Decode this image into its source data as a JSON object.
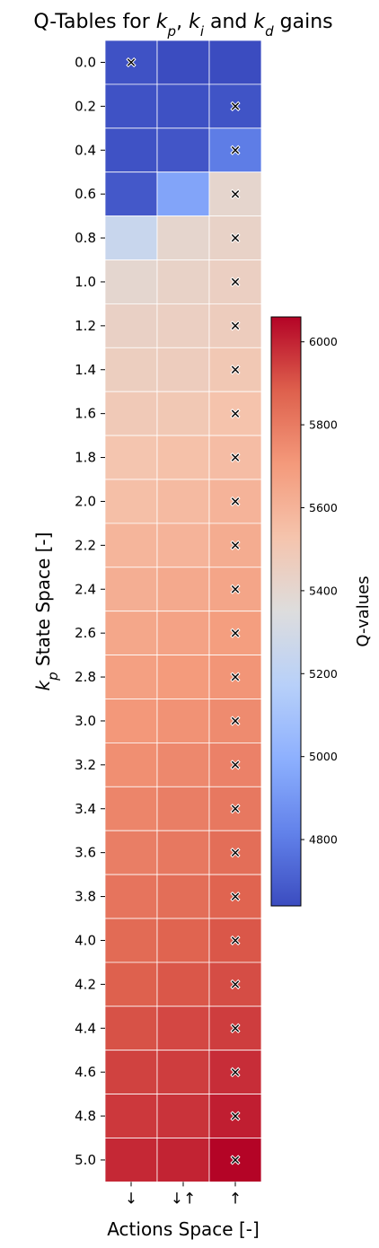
{
  "chart_data": {
    "type": "heatmap",
    "title": "Q-Tables for $k_p$, $k_i$ and $k_d$ gains",
    "title_parts": [
      "Q-Tables for ",
      "k",
      "p",
      ", ",
      "k",
      "i",
      " and ",
      "k",
      "d",
      " gains"
    ],
    "xlabel": "Actions Space [-]",
    "ylabel": "$k_p$ State Space [-]",
    "ylabel_parts": [
      "k",
      "p",
      " State Space [-]"
    ],
    "x_categories": [
      "↓",
      "↓↑",
      "↑"
    ],
    "y_categories": [
      "0.0",
      "0.2",
      "0.4",
      "0.6",
      "0.8",
      "1.0",
      "1.2",
      "1.4",
      "1.6",
      "1.8",
      "2.0",
      "2.2",
      "2.4",
      "2.6",
      "2.8",
      "3.0",
      "3.2",
      "3.4",
      "3.6",
      "3.8",
      "4.0",
      "4.2",
      "4.4",
      "4.6",
      "4.8",
      "5.0"
    ],
    "values": [
      [
        4660,
        4640,
        4640
      ],
      [
        4660,
        4655,
        4665
      ],
      [
        4660,
        4670,
        4800
      ],
      [
        4680,
        4950,
        5410
      ],
      [
        5250,
        5410,
        5430
      ],
      [
        5400,
        5430,
        5450
      ],
      [
        5440,
        5450,
        5470
      ],
      [
        5460,
        5470,
        5500
      ],
      [
        5490,
        5500,
        5530
      ],
      [
        5520,
        5540,
        5560
      ],
      [
        5550,
        5570,
        5600
      ],
      [
        5590,
        5600,
        5630
      ],
      [
        5620,
        5640,
        5660
      ],
      [
        5650,
        5670,
        5690
      ],
      [
        5680,
        5700,
        5720
      ],
      [
        5710,
        5730,
        5750
      ],
      [
        5740,
        5760,
        5780
      ],
      [
        5770,
        5790,
        5810
      ],
      [
        5790,
        5810,
        5840
      ],
      [
        5820,
        5840,
        5870
      ],
      [
        5850,
        5870,
        5900
      ],
      [
        5880,
        5900,
        5920
      ],
      [
        5910,
        5930,
        5950
      ],
      [
        5940,
        5950,
        5980
      ],
      [
        5960,
        5970,
        6010
      ],
      [
        5990,
        6000,
        6060
      ]
    ],
    "best_action_index": [
      0,
      2,
      2,
      2,
      2,
      2,
      2,
      2,
      2,
      2,
      2,
      2,
      2,
      2,
      2,
      2,
      2,
      2,
      2,
      2,
      2,
      2,
      2,
      2,
      2,
      2
    ],
    "marker": "x",
    "colormap": "coolwarm",
    "colorbar": {
      "label": "Q-values",
      "min": 4640,
      "max": 6060,
      "ticks": [
        4800,
        5000,
        5200,
        5400,
        5600,
        5800,
        6000
      ]
    },
    "grid": true
  }
}
